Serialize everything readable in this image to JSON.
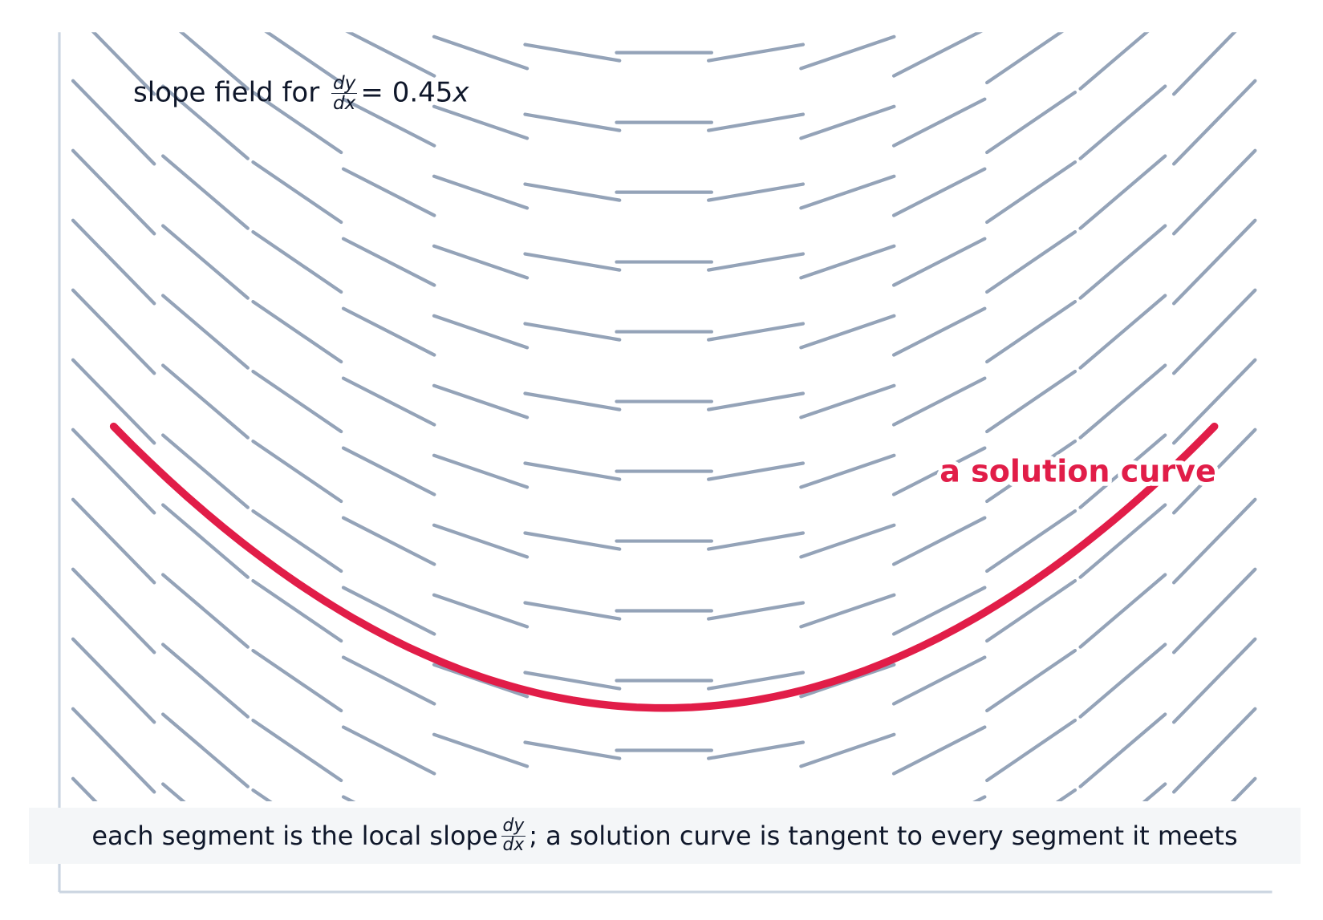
{
  "chart_data": {
    "type": "slope_field",
    "title": {
      "text": "slope field for",
      "num": "dy",
      "den": "dx",
      "equals": "=",
      "coefficient": 0.45,
      "variable": "x"
    },
    "annotation": "a solution curve",
    "caption": {
      "before": "each segment is the local slope",
      "num": "dy",
      "den": "dx",
      "after": "; a solution curve is tangent to every segment it meets"
    },
    "segment_color": "#94a3b8",
    "curve_color": "#e11d48"
  }
}
